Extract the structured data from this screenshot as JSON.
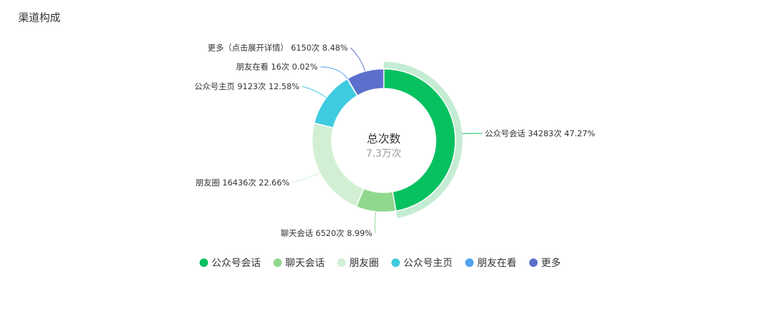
{
  "title": "渠道构成",
  "chart_data": {
    "type": "pie",
    "donut": true,
    "center_title": "总次数",
    "center_value": "7.3万次",
    "categories": [
      "公众号会话",
      "聊天会话",
      "朋友圈",
      "公众号主页",
      "朋友在看",
      "更多"
    ],
    "label_names": [
      "公众号会话",
      "聊天会话",
      "朋友圈",
      "公众号主页",
      "朋友在看",
      "更多（点击展开详情）"
    ],
    "values": [
      34283,
      6520,
      16436,
      9123,
      16,
      6150
    ],
    "count_labels": [
      "34283次",
      "6520次",
      "16436次",
      "9123次",
      "16次",
      "6150次"
    ],
    "percent_labels": [
      "47.27%",
      "8.99%",
      "22.66%",
      "12.58%",
      "0.02%",
      "8.48%"
    ],
    "colors": [
      "#07c160",
      "#91d88f",
      "#d2efd4",
      "#3fcbe0",
      "#4fa3ee",
      "#5b70cc"
    ],
    "highlighted": "公众号会话",
    "legend_position": "bottom"
  }
}
